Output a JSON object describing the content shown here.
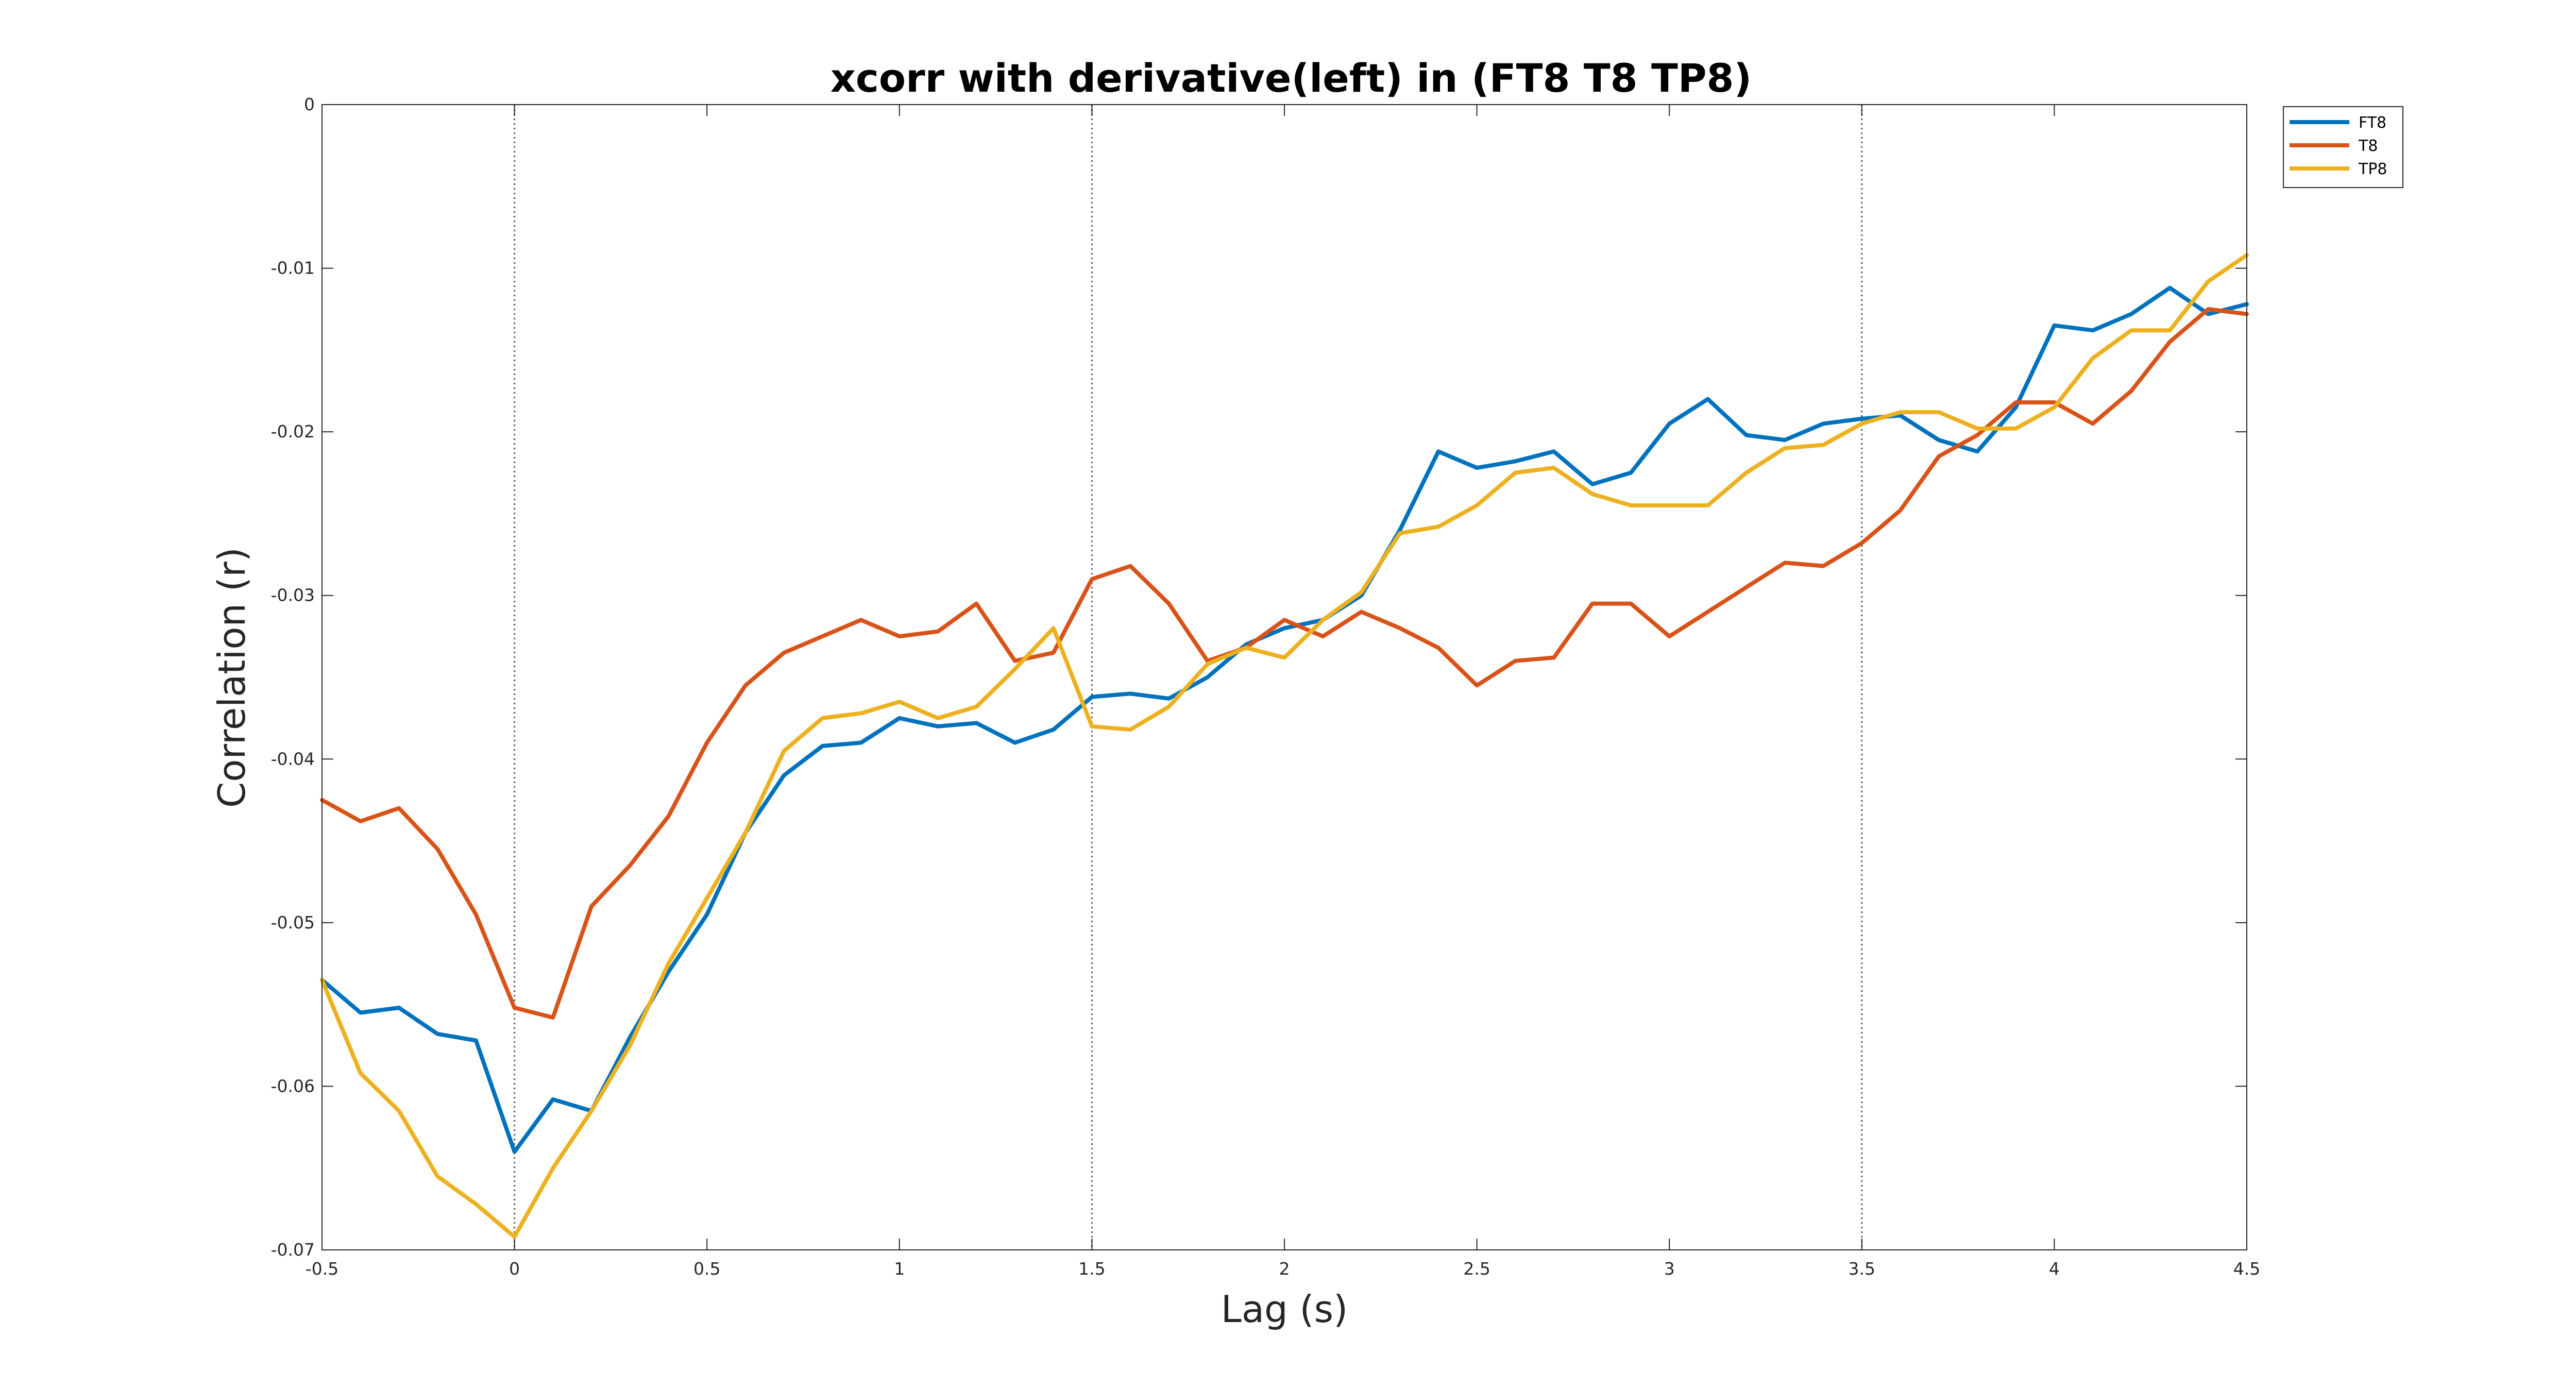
{
  "chart_data": {
    "type": "line",
    "title": "xcorr with derivative(left) in (FT8 T8 TP8)",
    "xlabel": "Lag (s)",
    "ylabel": "Correlation (r)",
    "xlim": [
      -0.5,
      4.5
    ],
    "ylim": [
      -0.07,
      0
    ],
    "xticks": [
      "-0.5",
      "0",
      "0.5",
      "1",
      "1.5",
      "2",
      "2.5",
      "3",
      "3.5",
      "4",
      "4.5"
    ],
    "yticks": [
      "0",
      "-0.01",
      "-0.02",
      "-0.03",
      "-0.04",
      "-0.05",
      "-0.06",
      "-0.07"
    ],
    "xtick_values": [
      -0.5,
      0,
      0.5,
      1,
      1.5,
      2,
      2.5,
      3,
      3.5,
      4,
      4.5
    ],
    "ytick_values": [
      0,
      -0.01,
      -0.02,
      -0.03,
      -0.04,
      -0.05,
      -0.06,
      -0.07
    ],
    "vlines": [
      0,
      1.5,
      3.5
    ],
    "grid": false,
    "legend": "outside-top-right",
    "x": [
      -0.5,
      -0.4,
      -0.3,
      -0.2,
      -0.1,
      0,
      0.1,
      0.2,
      0.3,
      0.4,
      0.5,
      0.6,
      0.7,
      0.8,
      0.9,
      1.0,
      1.1,
      1.2,
      1.3,
      1.4,
      1.5,
      1.6,
      1.7,
      1.8,
      1.9,
      2.0,
      2.1,
      2.2,
      2.3,
      2.4,
      2.5,
      2.6,
      2.7,
      2.8,
      2.9,
      3.0,
      3.1,
      3.2,
      3.3,
      3.4,
      3.5,
      3.6,
      3.7,
      3.8,
      3.9,
      4.0,
      4.1,
      4.2,
      4.3,
      4.4,
      4.5
    ],
    "series": [
      {
        "name": "FT8",
        "color": "#0072BD",
        "values": [
          -0.0535,
          -0.0555,
          -0.0552,
          -0.0568,
          -0.0572,
          -0.064,
          -0.0608,
          -0.0615,
          -0.057,
          -0.053,
          -0.0495,
          -0.0445,
          -0.041,
          -0.0392,
          -0.039,
          -0.0375,
          -0.038,
          -0.0378,
          -0.039,
          -0.0382,
          -0.0362,
          -0.036,
          -0.0363,
          -0.035,
          -0.033,
          -0.032,
          -0.0315,
          -0.03,
          -0.026,
          -0.0212,
          -0.0222,
          -0.0218,
          -0.0212,
          -0.0232,
          -0.0225,
          -0.0195,
          -0.018,
          -0.0202,
          -0.0205,
          -0.0195,
          -0.0192,
          -0.019,
          -0.0205,
          -0.0212,
          -0.0185,
          -0.0135,
          -0.0138,
          -0.0128,
          -0.0112,
          -0.0128,
          -0.0122
        ]
      },
      {
        "name": "T8",
        "color": "#D95319",
        "values": [
          -0.0425,
          -0.0438,
          -0.043,
          -0.0455,
          -0.0495,
          -0.0552,
          -0.0558,
          -0.049,
          -0.0465,
          -0.0435,
          -0.039,
          -0.0355,
          -0.0335,
          -0.0325,
          -0.0315,
          -0.0325,
          -0.0322,
          -0.0305,
          -0.034,
          -0.0335,
          -0.029,
          -0.0282,
          -0.0305,
          -0.034,
          -0.0332,
          -0.0315,
          -0.0325,
          -0.031,
          -0.032,
          -0.0332,
          -0.0355,
          -0.034,
          -0.0338,
          -0.0305,
          -0.0305,
          -0.0325,
          -0.031,
          -0.0295,
          -0.028,
          -0.0282,
          -0.0268,
          -0.0248,
          -0.0215,
          -0.0202,
          -0.0182,
          -0.0182,
          -0.0195,
          -0.0175,
          -0.0145,
          -0.0125,
          -0.0128
        ]
      },
      {
        "name": "TP8",
        "color": "#EDB120",
        "values": [
          -0.0535,
          -0.0592,
          -0.0615,
          -0.0655,
          -0.0672,
          -0.0692,
          -0.065,
          -0.0615,
          -0.0575,
          -0.0525,
          -0.0485,
          -0.0445,
          -0.0395,
          -0.0375,
          -0.0372,
          -0.0365,
          -0.0375,
          -0.0368,
          -0.0345,
          -0.032,
          -0.038,
          -0.0382,
          -0.0368,
          -0.0342,
          -0.0332,
          -0.0338,
          -0.0315,
          -0.0298,
          -0.0262,
          -0.0258,
          -0.0245,
          -0.0225,
          -0.0222,
          -0.0238,
          -0.0245,
          -0.0245,
          -0.0245,
          -0.0225,
          -0.021,
          -0.0208,
          -0.0195,
          -0.0188,
          -0.0188,
          -0.0198,
          -0.0198,
          -0.0185,
          -0.0155,
          -0.0138,
          -0.0138,
          -0.0108,
          -0.0092
        ]
      }
    ]
  }
}
